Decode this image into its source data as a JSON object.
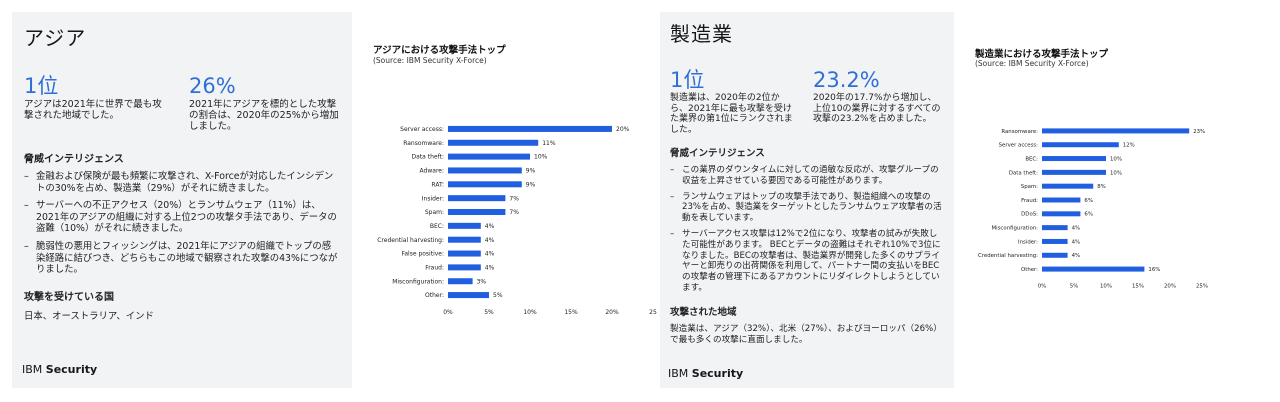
{
  "asia": {
    "title": "アジア",
    "stat1": {
      "value": "1位",
      "desc": "アジアは2021年に世界で最も攻撃された地域でした。"
    },
    "stat2": {
      "value": "26%",
      "desc": "2021年にアジアを標的とした攻撃の割合は、2020年の25%から増加しました。"
    },
    "intel_heading": "脅威インテリジェンス",
    "bullets": [
      "金融および保険が最も頻繁に攻撃され、X-Forceが対応したインシデントの30%を占め、製造業（29%）がそれに続きました。",
      "サーバーへの不正アクセス（20%）とランサムウェア（11%）は、2021年のアジアの組織に対する上位2つの攻撃タ手法であり、データの盗難（10%）がそれに続きました。",
      "脆弱性の悪用とフィッシングは、2021年にアジアの組織でトップの感染経路に結びつき、どちらもこの地域で観察された攻撃の43%につながりました。"
    ],
    "countries_heading": "攻撃を受けている国",
    "countries": "日本、オーストラリア、インド",
    "brand_light": "IBM",
    "brand_bold": "Security"
  },
  "asia_chart_text": {
    "title": "アジアにおける攻撃手法トップ",
    "source": "(Source: IBM Security X-Force)"
  },
  "manufacturing": {
    "title": "製造業",
    "stat1": {
      "value": "1位",
      "desc": "製造業は、2020年の2位から、2021年に最も攻撃を受けた業界の第1位にランクされました。"
    },
    "stat2": {
      "value": "23.2%",
      "desc": "2020年の17.7%から増加し、上位10の業界に対するすべての攻撃の23.2%を占めました。"
    },
    "intel_heading": "脅威インテリジェンス",
    "bullets": [
      "この業界のダウンタイムに対しての過敏な反応が、攻撃グループの収益を上昇させている要因である可能性があります。",
      "ランサムウェアはトップの攻撃手法であり、製造組織への攻撃の23%を占め、製造業をターゲットとしたランサムウェア攻撃者の活動を表しています。",
      "サーバーアクセス攻撃は12%で2位になり、攻撃者の試みが失敗した可能性があります。 BECとデータの盗難はそれぞれ10%で3位になりました。BECの攻撃者は、製造業界が開発した多くのサプライヤーと卸売りの出荷関係を利用して、パートナー間の支払いをBECの攻撃者の管理下にあるアカウントにリダイレクトしようとしています。"
    ],
    "region_heading": "攻撃された地域",
    "region_text": "製造業は、アジア（32%）、北米（27%）、およびヨーロッパ（26%）で最も多くの攻撃に直面しました。",
    "brand_light": "IBM",
    "brand_bold": "Security"
  },
  "mfg_chart_text": {
    "title": "製造業における攻撃手法トップ",
    "source": "(Source: IBM Security X-Force)"
  },
  "chart_data": [
    {
      "type": "bar",
      "orientation": "horizontal",
      "title": "アジアにおける攻撃手法トップ",
      "subtitle": "(Source: IBM Security X-Force)",
      "categories": [
        "Server access",
        "Ransomware",
        "Data theft",
        "Adware",
        "RAT",
        "Insider",
        "Spam",
        "BEC",
        "Credential harvesting",
        "False positive",
        "Fraud",
        "Misconfiguration",
        "Other"
      ],
      "values": [
        20,
        11,
        10,
        9,
        9,
        7,
        7,
        4,
        4,
        4,
        4,
        3,
        5
      ],
      "value_labels": [
        "20%",
        "11%",
        "10%",
        "9%",
        "9%",
        "7%",
        "7%",
        "4%",
        "4%",
        "4%",
        "4%",
        "3%",
        "5%"
      ],
      "xticks": [
        "0%",
        "5%",
        "10%",
        "15%",
        "20%",
        "25"
      ],
      "xlim": [
        0,
        25
      ],
      "color": "#1f5fe0"
    },
    {
      "type": "bar",
      "orientation": "horizontal",
      "title": "製造業における攻撃手法トップ",
      "subtitle": "(Source: IBM Security X-Force)",
      "categories": [
        "Ransomware",
        "Server access",
        "BEC",
        "Data theft",
        "Spam",
        "Fraud",
        "DDoS",
        "Misconfiguration",
        "Insider",
        "Credential harvesting",
        "Other"
      ],
      "values": [
        23,
        12,
        10,
        10,
        8,
        6,
        6,
        4,
        4,
        4,
        16
      ],
      "value_labels": [
        "23%",
        "12%",
        "10%",
        "10%",
        "8%",
        "6%",
        "6%",
        "4%",
        "4%",
        "4%",
        "16%"
      ],
      "xticks": [
        "0%",
        "5%",
        "10%",
        "15%",
        "20%",
        "25%"
      ],
      "xlim": [
        0,
        25
      ],
      "color": "#1f5fe0"
    }
  ]
}
